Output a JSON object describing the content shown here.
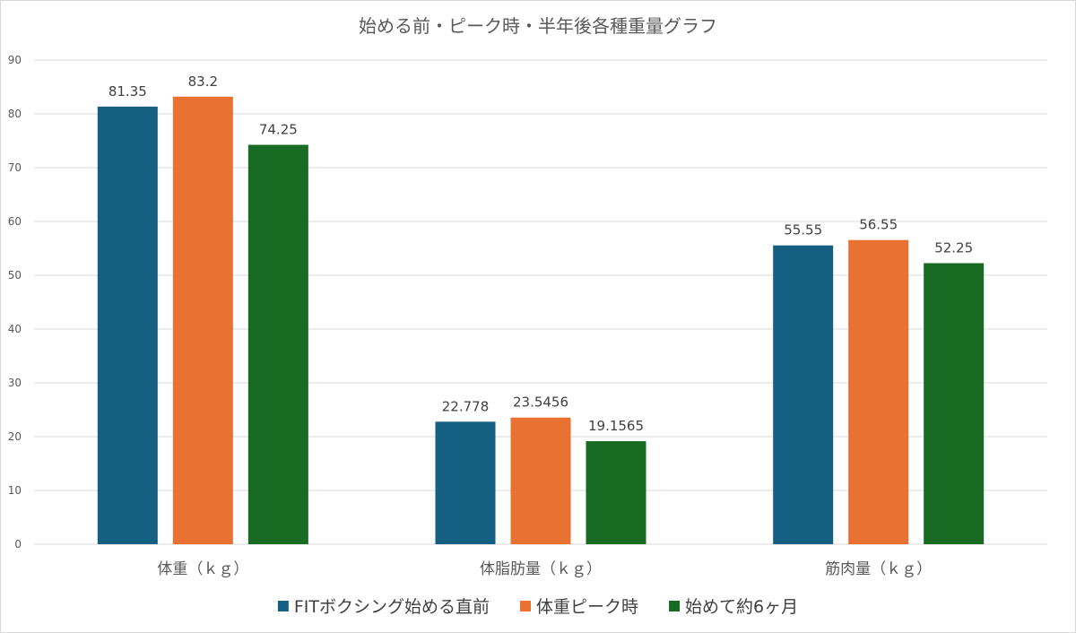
{
  "chart_data": {
    "type": "bar",
    "title": "始める前・ピーク時・半年後各種重量グラフ",
    "xlabel": "",
    "ylabel": "",
    "categories": [
      "体重（ｋｇ）",
      "体脂肪量（ｋｇ）",
      "筋肉量（ｋｇ）"
    ],
    "series": [
      {
        "name": "FITボクシング始める直前",
        "values": [
          81.35,
          22.778,
          55.55
        ],
        "labels": [
          "81.35",
          "22.778",
          "55.55"
        ],
        "color": "#156082"
      },
      {
        "name": "体重ピーク時",
        "values": [
          83.2,
          23.5456,
          56.55
        ],
        "labels": [
          "83.2",
          "23.5456",
          "56.55"
        ],
        "color": "#E97132"
      },
      {
        "name": "始めて約6ヶ月",
        "values": [
          74.25,
          19.1565,
          52.25
        ],
        "labels": [
          "74.25",
          "19.1565",
          "52.25"
        ],
        "color": "#196B24"
      }
    ],
    "ylim": [
      0,
      90
    ],
    "yticks": [
      0,
      10,
      20,
      30,
      40,
      50,
      60,
      70,
      80,
      90
    ],
    "grid": true,
    "legend_position": "bottom"
  }
}
